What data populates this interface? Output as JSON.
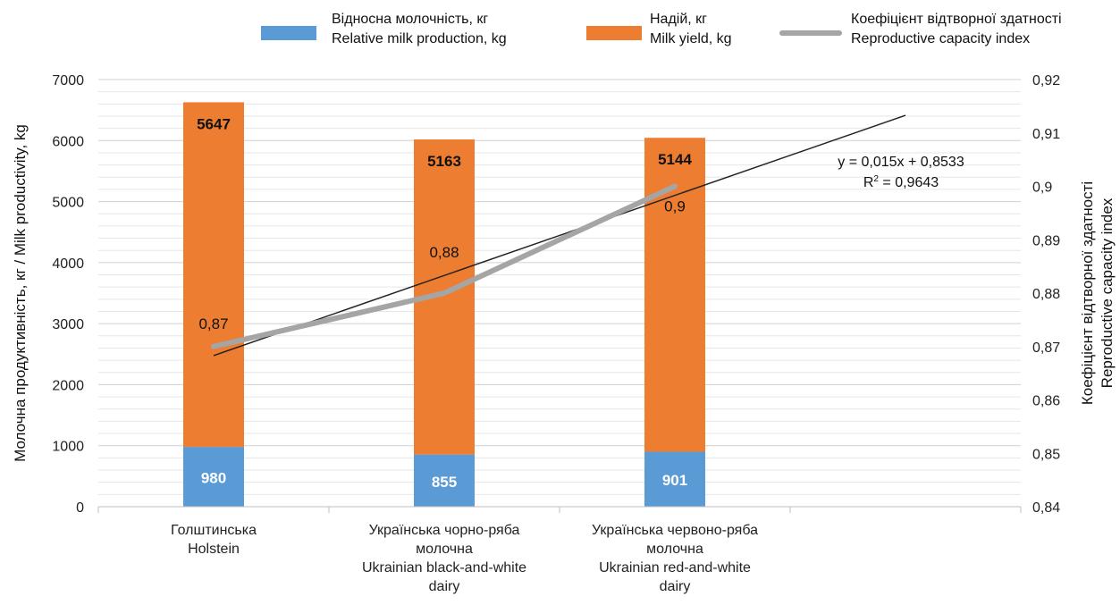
{
  "chart_data": {
    "type": "bar",
    "stacked": true,
    "categories": [
      [
        "Голштинська",
        "Holstein"
      ],
      [
        "Українська чорно-ряба",
        "молочна",
        "Ukrainian black-and-white",
        "dairy"
      ],
      [
        "Українська червоно-ряба",
        "молочна",
        "Ukrainian red-and-white",
        "dairy"
      ]
    ],
    "series": [
      {
        "name": [
          "Відносна молочність, кг",
          "Relative milk production, kg"
        ],
        "type": "bar",
        "axis": "left",
        "color": "#5B9BD5",
        "values": [
          980,
          855,
          901
        ]
      },
      {
        "name": [
          "Надій, кг",
          "Milk yield, kg"
        ],
        "type": "bar",
        "axis": "left",
        "color": "#ED7D31",
        "values": [
          5647,
          5163,
          5144
        ]
      },
      {
        "name": [
          "Коефіцієнт відтворної здатності",
          "Reproductive capacity index"
        ],
        "type": "line",
        "axis": "right",
        "color": "#A5A5A5",
        "values": [
          0.87,
          0.88,
          0.9
        ]
      }
    ],
    "trendline": {
      "slope": 0.015,
      "intercept": 0.8533,
      "x_start": 1,
      "x_end": 4,
      "color": "#222222",
      "equation": "y = 0,015x + 0,8533",
      "r2_prefix": "R",
      "r2_exp": "2",
      "r2_value": " = 0,9643"
    },
    "ylabel": "Молочна продуктивність, кг / Milk productivity, kg",
    "y2label": [
      "Коефіцієнт відтворної здатності",
      "Reproductive capacity index"
    ],
    "ylim": [
      0,
      7000
    ],
    "y2lim": [
      0.84,
      0.92
    ],
    "yticks": [
      "0",
      "1000",
      "2000",
      "3000",
      "4000",
      "5000",
      "6000",
      "7000"
    ],
    "y2ticks": [
      "0,84",
      "0,85",
      "0,86",
      "0,87",
      "0,88",
      "0,89",
      "0,9",
      "0,91",
      "0,92"
    ],
    "line_labels": [
      "0,87",
      "0,88",
      "0,9"
    ],
    "x_slots": 4,
    "grid": true,
    "legend_position": "top"
  }
}
